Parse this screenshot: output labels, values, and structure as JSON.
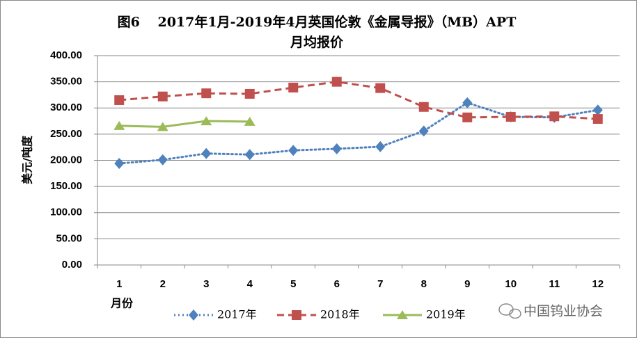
{
  "chart_data": {
    "type": "line",
    "title": "图6　 2017年1月-2019年4月英国伦敦《金属导报》（MB）APT",
    "subtitle": "月均报价",
    "y_label": "美元/吨度",
    "x_label": "月份",
    "categories": [
      "1",
      "2",
      "3",
      "4",
      "5",
      "6",
      "7",
      "8",
      "9",
      "10",
      "11",
      "12"
    ],
    "series": [
      {
        "name": "2017年",
        "color": "#4f81bd",
        "marker": "diamond",
        "dash": "dotted",
        "values": [
          194,
          201,
          213,
          211,
          219,
          222,
          226,
          256,
          310,
          283,
          282,
          296
        ]
      },
      {
        "name": "2018年",
        "color": "#c0504d",
        "marker": "square",
        "dash": "dashed",
        "values": [
          315,
          322,
          328,
          327,
          339,
          350,
          338,
          302,
          282,
          283,
          284,
          279
        ]
      },
      {
        "name": "2019年",
        "color": "#9bbb59",
        "marker": "triangle",
        "dash": "solid",
        "values": [
          266,
          264,
          275,
          274,
          null,
          null,
          null,
          null,
          null,
          null,
          null,
          null
        ]
      }
    ],
    "ylim": [
      0,
      400
    ],
    "yticks": [
      {
        "value": 0,
        "label": "0.00"
      },
      {
        "value": 50,
        "label": "50.00"
      },
      {
        "value": 100,
        "label": "100.00"
      },
      {
        "value": 150,
        "label": "150.00"
      },
      {
        "value": 200,
        "label": "200.00"
      },
      {
        "value": 250,
        "label": "250.00"
      },
      {
        "value": 300,
        "label": "300.00"
      },
      {
        "value": 350,
        "label": "350.00"
      },
      {
        "value": 400,
        "label": "400.00"
      }
    ],
    "grid": true,
    "legend": "bottom",
    "watermark": "中国钨业协会"
  }
}
